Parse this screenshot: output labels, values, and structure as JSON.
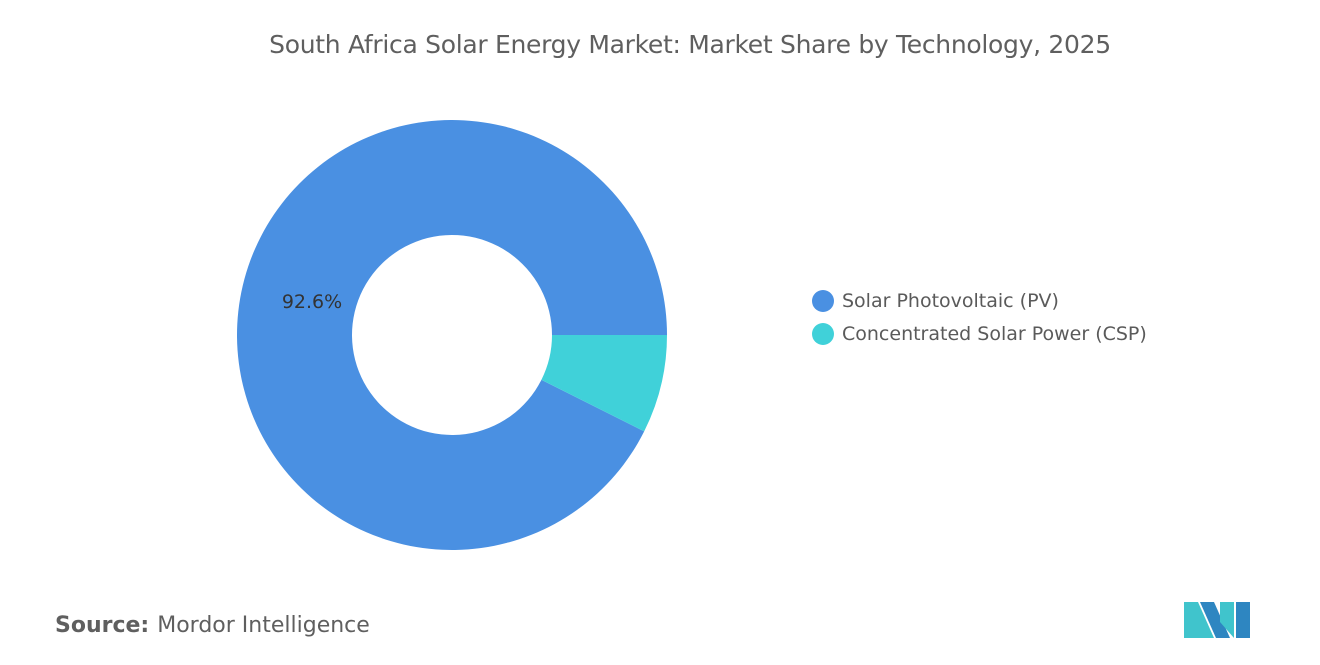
{
  "chart_data": {
    "type": "pie",
    "donut": true,
    "title": "South Africa Solar Energy Market: Market Share by Technology, 2025",
    "categories": [
      "Solar Photovoltaic (PV)",
      "Concentrated Solar Power (CSP)"
    ],
    "values": [
      92.6,
      7.4
    ],
    "colors": [
      "#4a90e2",
      "#40d1d9"
    ],
    "data_labels": [
      "92.6%",
      ""
    ],
    "legend_position": "right"
  },
  "source": {
    "label": "Source:",
    "value": "Mordor Intelligence"
  },
  "logo": {
    "colors": [
      "#2e86c1",
      "#40c4cc"
    ]
  }
}
